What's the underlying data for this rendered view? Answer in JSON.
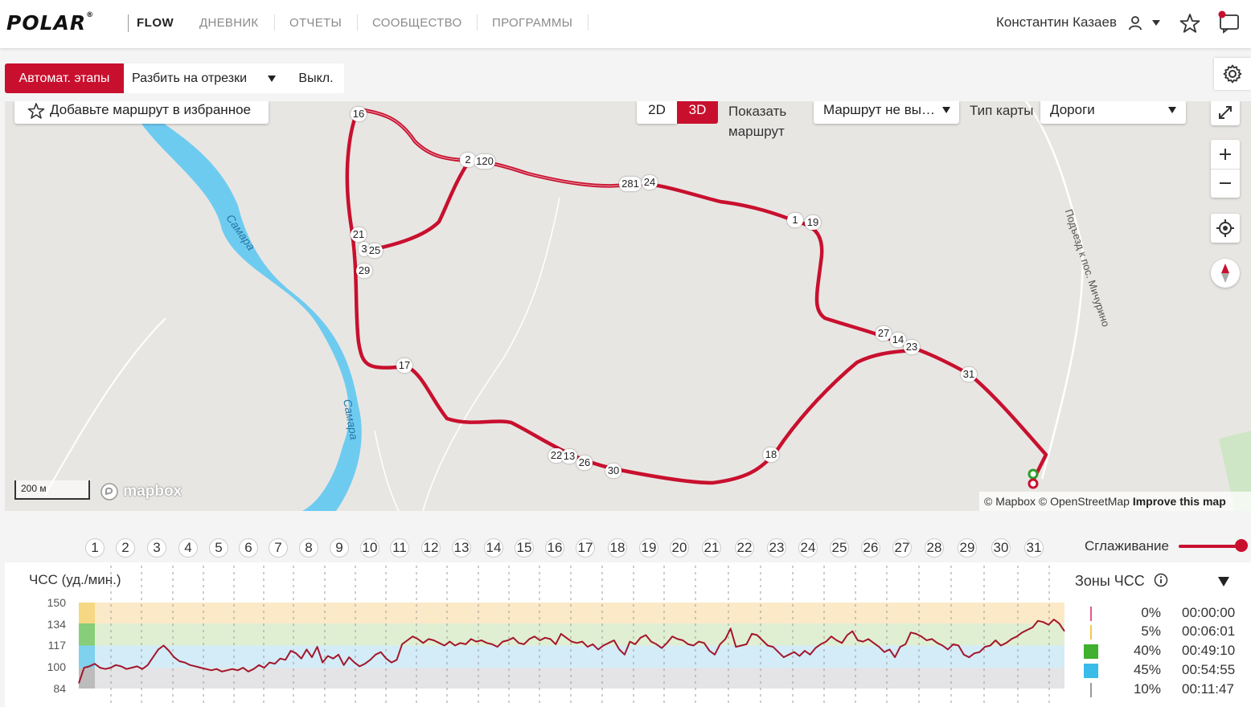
{
  "nav": {
    "logo": "POLAR",
    "logo_mark": "®",
    "product": "FLOW",
    "links": [
      "ДНЕВНИК",
      "ОТЧЕТЫ",
      "СООБЩЕСТВО",
      "ПРОГРАММЫ"
    ],
    "user_name": "Константин Казаев"
  },
  "toolbar": {
    "auto_laps": "Автомат. этапы",
    "split": "Разбить на отрезки",
    "off": "Выкл."
  },
  "map": {
    "favorite": "Добавьте маршрут в избранное",
    "view_2d": "2D",
    "view_3d": "3D",
    "active_view": "3D",
    "show_route": "Показать маршрут",
    "route_select": "Маршрут не вы…",
    "map_type_label": "Тип карты",
    "map_type_value": "Дороги",
    "river_name": "Самара",
    "road_name": "Подъезд к пос. Мичурино",
    "scale": "200 м",
    "brand": "mapbox",
    "attribution_text": "© Mapbox © OpenStreetMap",
    "attribution_link": "Improve this map",
    "waypoints": [
      "16",
      "2",
      "120",
      "281",
      "24",
      "1",
      "19",
      "21",
      "3",
      "25",
      "29",
      "17",
      "27",
      "14",
      "23",
      "31",
      "22",
      "13",
      "26",
      "30",
      "18"
    ]
  },
  "laps": [
    "1",
    "2",
    "3",
    "4",
    "5",
    "6",
    "7",
    "8",
    "9",
    "10",
    "11",
    "12",
    "13",
    "14",
    "15",
    "16",
    "17",
    "18",
    "19",
    "20",
    "21",
    "22",
    "23",
    "24",
    "25",
    "26",
    "27",
    "28",
    "29",
    "30",
    "31"
  ],
  "smoothing_label": "Сглаживание",
  "chart_data": {
    "type": "line",
    "title": "ЧСС (уд./мин.)",
    "yticks": [
      "150",
      "134",
      "117",
      "100",
      "84"
    ],
    "ylim": [
      84,
      150
    ],
    "zone_bounds": [
      84,
      100,
      117,
      134,
      150
    ],
    "zone_colors": [
      "#e4e4e6",
      "#d3ecf7",
      "#e0efd2",
      "#fbe9c8"
    ],
    "line_color": "#a3162b",
    "duration_min": 122,
    "series": [
      {
        "name": "",
        "values": [
          88,
          100,
          101,
          103,
          100,
          99,
          100,
          102,
          101,
          99,
          100,
          101,
          99,
          102,
          108,
          114,
          117,
          113,
          108,
          105,
          104,
          102,
          101,
          100,
          99,
          98,
          99,
          97,
          98,
          99,
          98,
          100,
          97,
          99,
          102,
          100,
          104,
          103,
          107,
          106,
          113,
          111,
          107,
          114,
          108,
          116,
          104,
          109,
          107,
          110,
          102,
          108,
          104,
          101,
          103,
          106,
          110,
          112,
          107,
          104,
          106,
          118,
          121,
          124,
          122,
          119,
          122,
          121,
          119,
          117,
          120,
          117,
          119,
          118,
          122,
          120,
          121,
          119,
          118,
          116,
          120,
          121,
          123,
          119,
          118,
          122,
          124,
          121,
          123,
          122,
          118,
          126,
          123,
          120,
          119,
          120,
          116,
          118,
          114,
          117,
          119,
          121,
          114,
          110,
          120,
          118,
          123,
          125,
          120,
          118,
          115,
          119,
          124,
          122,
          121,
          118,
          117,
          120,
          119,
          113,
          110,
          118,
          122,
          130,
          116,
          117,
          118,
          126,
          125,
          121,
          117,
          116,
          112,
          108,
          110,
          112,
          109,
          113,
          110,
          115,
          118,
          120,
          124,
          121,
          119,
          125,
          128,
          121,
          120,
          122,
          119,
          116,
          112,
          114,
          108,
          116,
          118,
          127,
          126,
          124,
          121,
          122,
          119,
          117,
          114,
          118,
          117,
          110,
          108,
          111,
          112,
          116,
          117,
          121,
          117,
          119,
          122,
          124,
          127,
          129,
          131,
          136,
          135,
          133,
          137,
          134,
          128
        ]
      }
    ]
  },
  "zones": {
    "title": "Зоны ЧСС",
    "rows": [
      {
        "pct": "0%",
        "time": "00:00:00",
        "color": "#e05a8a",
        "pct_num": 0
      },
      {
        "pct": "5%",
        "time": "00:06:01",
        "color": "#f2c94c",
        "pct_num": 5
      },
      {
        "pct": "40%",
        "time": "00:49:10",
        "color": "#3fb02f",
        "pct_num": 40
      },
      {
        "pct": "45%",
        "time": "00:54:55",
        "color": "#3bbbe8",
        "pct_num": 45
      },
      {
        "pct": "10%",
        "time": "00:11:47",
        "color": "#9a9a9a",
        "pct_num": 10
      }
    ]
  },
  "colors": {
    "brand_red": "#c8102e",
    "river": "#6ecbf0"
  }
}
